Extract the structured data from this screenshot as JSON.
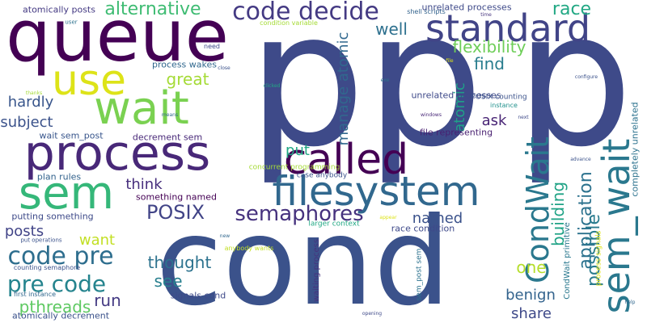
{
  "words": [
    {
      "text": "pp",
      "color": "#3e4a89"
    },
    {
      "text": "p",
      "color": "#3e4a89"
    },
    {
      "text": "cond",
      "color": "#3b528b"
    },
    {
      "text": "queue",
      "color": "#440154"
    },
    {
      "text": "process",
      "color": "#482878"
    },
    {
      "text": "wait",
      "color": "#7ad151"
    },
    {
      "text": "use",
      "color": "#dde318"
    },
    {
      "text": "sem",
      "color": "#35b779"
    },
    {
      "text": "called",
      "color": "#440154"
    },
    {
      "text": "filesystem",
      "color": "#31688e"
    },
    {
      "text": "standard",
      "color": "#414487"
    },
    {
      "text": "code decide",
      "color": "#443a83"
    },
    {
      "text": "sem_wait",
      "color": "#2a788e"
    },
    {
      "text": "CondWait",
      "color": "#2a788e"
    },
    {
      "text": "semaphores",
      "color": "#46327e"
    },
    {
      "text": "POSIX",
      "color": "#414487"
    },
    {
      "text": "code pre",
      "color": "#2e6e8e"
    },
    {
      "text": "pre code",
      "color": "#25848e"
    },
    {
      "text": "alternative",
      "color": "#3fbc73"
    },
    {
      "text": "race",
      "color": "#22a884"
    },
    {
      "text": "flexibility",
      "color": "#6ece58"
    },
    {
      "text": "manage atomic",
      "color": "#31688e"
    },
    {
      "text": "application",
      "color": "#2c728e"
    },
    {
      "text": "possible",
      "color": "#297b8e"
    },
    {
      "text": "building",
      "color": "#20a386"
    },
    {
      "text": "atomic",
      "color": "#1fa088"
    },
    {
      "text": "great",
      "color": "#a5db36"
    },
    {
      "text": "find",
      "color": "#287d8e"
    },
    {
      "text": "well",
      "color": "#2d708e"
    },
    {
      "text": "hardly",
      "color": "#39568c"
    },
    {
      "text": "subject",
      "color": "#3b528b"
    },
    {
      "text": "thought",
      "color": "#2c728e"
    },
    {
      "text": "see",
      "color": "#277f8e"
    },
    {
      "text": "posts",
      "color": "#414487"
    },
    {
      "text": "want",
      "color": "#c2df23"
    },
    {
      "text": "pthreads",
      "color": "#5ec962"
    },
    {
      "text": "run",
      "color": "#443a83"
    },
    {
      "text": "think",
      "color": "#472f7d"
    },
    {
      "text": "put",
      "color": "#22a884"
    },
    {
      "text": "named",
      "color": "#3b528b"
    },
    {
      "text": "ask",
      "color": "#482475"
    },
    {
      "text": "one",
      "color": "#b5de2b"
    },
    {
      "text": "benign",
      "color": "#33638d"
    },
    {
      "text": "share",
      "color": "#3e4989"
    },
    {
      "text": "completely unrelated",
      "color": "#2c728e"
    },
    {
      "text": "atomically posts",
      "color": "#443a83"
    },
    {
      "text": "unrelated processes",
      "color": "#3e4989"
    },
    {
      "text": "process wakes",
      "color": "#31688e"
    },
    {
      "text": "decrement sem",
      "color": "#482878"
    },
    {
      "text": "wait sem_post",
      "color": "#39568c"
    },
    {
      "text": "plan rules",
      "color": "#33638d"
    },
    {
      "text": "something named",
      "color": "#440154"
    },
    {
      "text": "putting something",
      "color": "#3e4a89"
    },
    {
      "text": "file representing",
      "color": "#481f70"
    },
    {
      "text": "race condition",
      "color": "#3e4989"
    },
    {
      "text": "unrelated processes",
      "color": "#3e4989"
    },
    {
      "text": "POSIX counting",
      "color": "#3b528b"
    },
    {
      "text": "instance",
      "color": "#21918c"
    },
    {
      "text": "CondWait primitive",
      "color": "#2a788e"
    },
    {
      "text": "signals cond",
      "color": "#3e4989"
    },
    {
      "text": "first instance",
      "color": "#31688e"
    },
    {
      "text": "atomically decrement",
      "color": "#3b528b"
    },
    {
      "text": "counting semaphore",
      "color": "#3b528b"
    },
    {
      "text": "waiting process",
      "color": "#46337e"
    },
    {
      "text": "sem_post sem",
      "color": "#2c728e"
    },
    {
      "text": "process signals",
      "color": "#dde318"
    },
    {
      "text": "larger context",
      "color": "#22a884"
    },
    {
      "text": "concurrent programming",
      "color": "#a5db36"
    },
    {
      "text": "case anybody",
      "color": "#3b528b"
    },
    {
      "text": "anybody wants",
      "color": "#c2df23"
    },
    {
      "text": "put operations",
      "color": "#3b528b"
    },
    {
      "text": "shell scripts",
      "color": "#33638d"
    },
    {
      "text": "condition variable",
      "color": "#a5db36"
    },
    {
      "text": "need",
      "color": "#3e4989"
    },
    {
      "text": "user",
      "color": "#2c728e"
    },
    {
      "text": "close",
      "color": "#3b528b"
    },
    {
      "text": "clicked",
      "color": "#22a884"
    },
    {
      "text": "thanks",
      "color": "#a5db36"
    },
    {
      "text": "means",
      "color": "#31688e"
    },
    {
      "text": "file",
      "color": "#dde318"
    },
    {
      "text": "exe",
      "color": "#2c728e"
    },
    {
      "text": "windows",
      "color": "#482878"
    },
    {
      "text": "next",
      "color": "#3e4989"
    },
    {
      "text": "advance",
      "color": "#3b528b"
    },
    {
      "text": "configure",
      "color": "#3b528b"
    },
    {
      "text": "time",
      "color": "#46337e"
    },
    {
      "text": "new",
      "color": "#31688e"
    },
    {
      "text": "appear",
      "color": "#dde318"
    },
    {
      "text": "opening",
      "color": "#3e4989"
    },
    {
      "text": "help",
      "color": "#31688e"
    }
  ]
}
